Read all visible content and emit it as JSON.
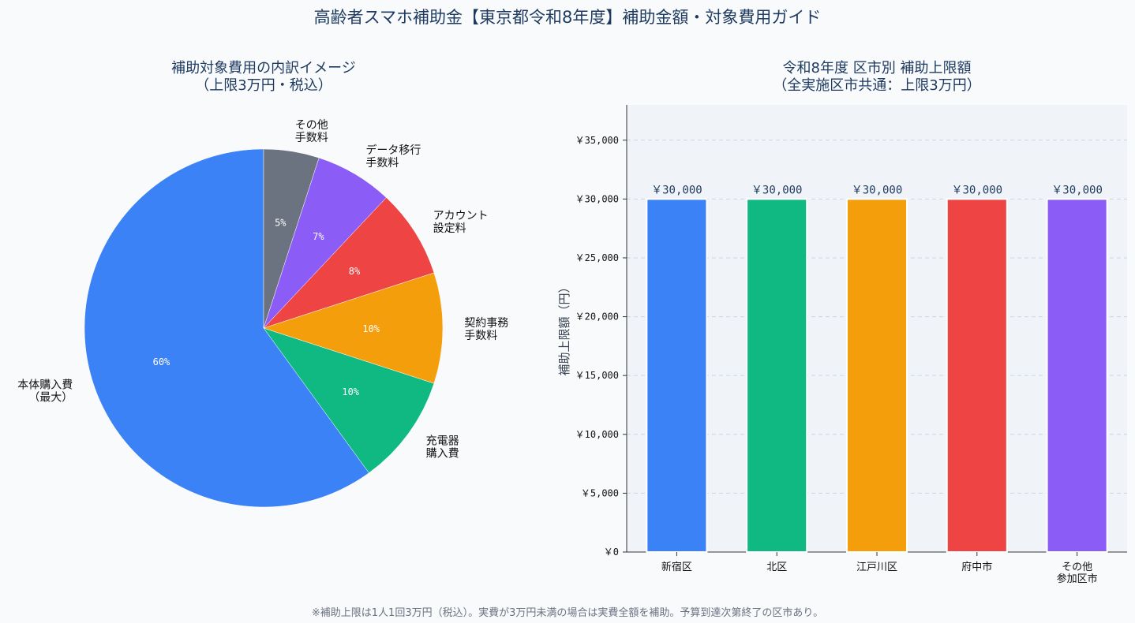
{
  "title": "高齢者スマホ補助金【東京都令和8年度】補助金額・対象費用ガイド",
  "footnote": "※補助上限は1人1回3万円（税込）。実費が3万円未満の場合は実費全額を補助。予算到達次第終了の区市あり。",
  "chart_data": [
    {
      "type": "pie",
      "title": [
        "補助対象費用の内訳イメージ",
        "（上限3万円・税込）"
      ],
      "slices": [
        {
          "label": [
            "本体購入費",
            "（最大）"
          ],
          "value": 60,
          "pct_label": "60%",
          "color": "#3b82f6"
        },
        {
          "label": [
            "充電器",
            "購入費"
          ],
          "value": 10,
          "pct_label": "10%",
          "color": "#10b981"
        },
        {
          "label": [
            "契約事務",
            "手数料"
          ],
          "value": 10,
          "pct_label": "10%",
          "color": "#f59e0b"
        },
        {
          "label": [
            "アカウント",
            "設定料"
          ],
          "value": 8,
          "pct_label": "8%",
          "color": "#ef4444"
        },
        {
          "label": [
            "データ移行",
            "手数料"
          ],
          "value": 7,
          "pct_label": "7%",
          "color": "#8b5cf6"
        },
        {
          "label": [
            "その他",
            "手数料"
          ],
          "value": 5,
          "pct_label": "5%",
          "color": "#6b7280"
        }
      ]
    },
    {
      "type": "bar",
      "title": [
        "令和8年度 区市別 補助上限額",
        "（全実施区市共通：上限3万円）"
      ],
      "ylabel": "補助上限額（円）",
      "categories": [
        [
          "新宿区"
        ],
        [
          "北区"
        ],
        [
          "江戸川区"
        ],
        [
          "府中市"
        ],
        [
          "その他",
          "参加区市"
        ]
      ],
      "values": [
        30000,
        30000,
        30000,
        30000,
        30000
      ],
      "value_labels": [
        "￥30,000",
        "￥30,000",
        "￥30,000",
        "￥30,000",
        "￥30,000"
      ],
      "colors": [
        "#3b82f6",
        "#10b981",
        "#f59e0b",
        "#ef4444",
        "#8b5cf6"
      ],
      "ylim": [
        0,
        38000
      ],
      "yticks": [
        0,
        5000,
        10000,
        15000,
        20000,
        25000,
        30000,
        35000
      ],
      "ytick_labels": [
        "￥0",
        "￥5,000",
        "￥10,000",
        "￥15,000",
        "￥20,000",
        "￥25,000",
        "￥30,000",
        "￥35,000"
      ],
      "grid": true
    }
  ]
}
